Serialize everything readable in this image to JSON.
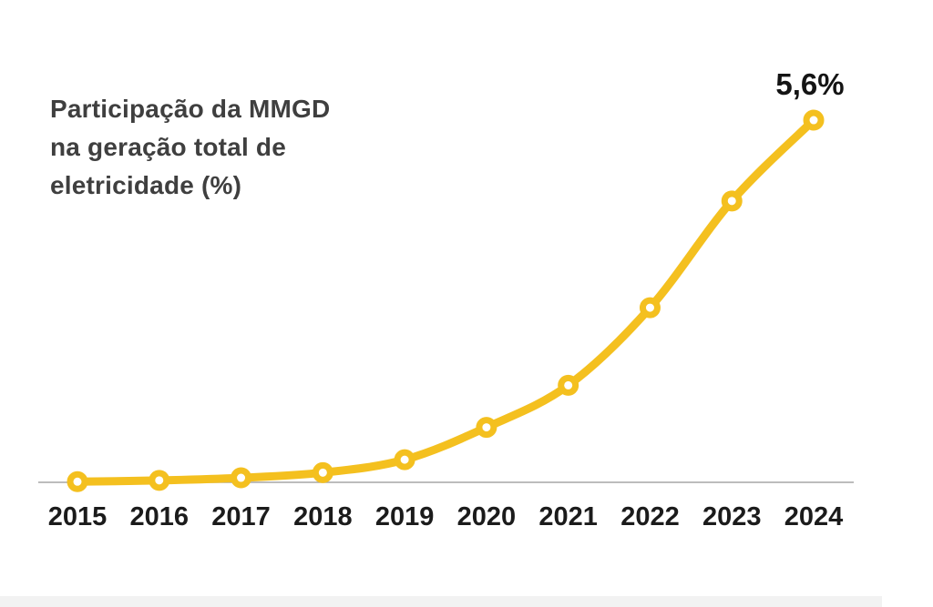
{
  "title_lines": [
    "Participação da MMGD",
    "na geração total de",
    "eletricidade (%)"
  ],
  "chart_data": {
    "type": "line",
    "title": "Participação da MMGD na geração total de eletricidade (%)",
    "categories": [
      "2015",
      "2016",
      "2017",
      "2018",
      "2019",
      "2020",
      "2021",
      "2022",
      "2023",
      "2024"
    ],
    "series": [
      {
        "name": "Participação da MMGD na geração total de eletricidade (%)",
        "values": [
          0.01,
          0.03,
          0.07,
          0.15,
          0.35,
          0.85,
          1.5,
          2.7,
          4.35,
          5.6
        ]
      }
    ],
    "ylim": [
      0,
      6
    ],
    "grid": false,
    "legend": "none",
    "annotations": [
      {
        "text": "5,6%",
        "category": "2024",
        "value": 5.6
      }
    ],
    "colors": {
      "line": "#F4C01F",
      "marker_fill": "#ffffff",
      "axis_line": "#a6a6a6",
      "tick_label": "#1b1b1b",
      "annotation": "#141414",
      "title": "#3f3f3f"
    }
  }
}
